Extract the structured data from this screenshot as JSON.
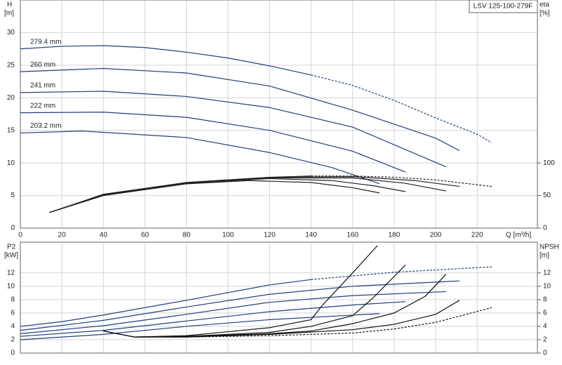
{
  "chart_data": [
    {
      "type": "line",
      "title": "LSV 125-100-279F",
      "y_label": "H",
      "y_unit": "[m]",
      "y2_label": "eta",
      "y2_unit": "[%]",
      "x_label": "Q [m³/h]",
      "xlim": [
        0,
        249
      ],
      "xticks": [
        0,
        20,
        40,
        60,
        80,
        100,
        120,
        140,
        160,
        180,
        200,
        220
      ],
      "xtick_labels": true,
      "ylim": [
        0,
        35
      ],
      "yticks": [
        0,
        5,
        10,
        15,
        20,
        25,
        30
      ],
      "y2lim": [
        0,
        350
      ],
      "y2ticks": [
        0,
        50,
        100
      ],
      "grid": true,
      "series": [
        {
          "name": "279.4 mm",
          "color": "#1f3f7a",
          "dashed": false,
          "x": [
            0,
            20,
            40,
            60,
            80,
            100,
            120,
            140
          ],
          "values": [
            27.5,
            27.9,
            28.0,
            27.7,
            27.0,
            26.1,
            24.9,
            23.5
          ]
        },
        {
          "color": "#1f3f7a",
          "dashed": true,
          "x": [
            140,
            160,
            180,
            200,
            220,
            227
          ],
          "values": [
            23.5,
            21.9,
            19.6,
            16.9,
            14.4,
            13.1
          ]
        },
        {
          "name": "260 mm",
          "color": "#1f3f7a",
          "dashed": false,
          "x": [
            0,
            40,
            80,
            120,
            160,
            200,
            211.5
          ],
          "values": [
            24.0,
            24.5,
            23.8,
            21.8,
            18.1,
            13.8,
            11.9
          ]
        },
        {
          "name": "241 mm",
          "color": "#1f3f7a",
          "dashed": false,
          "x": [
            0,
            40,
            80,
            120,
            160,
            205
          ],
          "values": [
            20.8,
            21.0,
            20.2,
            18.5,
            15.5,
            9.4
          ]
        },
        {
          "name": "222 mm",
          "color": "#1f3f7a",
          "dashed": false,
          "x": [
            0,
            40,
            80,
            120,
            160,
            185.5
          ],
          "values": [
            17.7,
            17.8,
            17.0,
            15.0,
            11.8,
            8.6
          ]
        },
        {
          "name": "203.2 mm",
          "color": "#1f3f7a",
          "dashed": false,
          "x": [
            0,
            30,
            80,
            120,
            150,
            173
          ],
          "values": [
            14.6,
            14.9,
            13.9,
            11.6,
            9.3,
            6.8
          ]
        },
        {
          "color": "#222222",
          "dashed": false,
          "axis": "y2",
          "x": [
            14,
            40,
            80,
            120,
            140
          ],
          "values": [
            24,
            52,
            70,
            78,
            80
          ]
        },
        {
          "color": "#222222",
          "dashed": true,
          "axis": "y2",
          "x": [
            140,
            160,
            180,
            200,
            227
          ],
          "values": [
            80,
            80,
            78,
            74,
            64
          ]
        },
        {
          "color": "#222222",
          "dashed": false,
          "axis": "y2",
          "x": [
            14,
            40,
            80,
            120,
            160,
            190,
            211.5
          ],
          "values": [
            24,
            51,
            70,
            78,
            79,
            73,
            64
          ]
        },
        {
          "color": "#222222",
          "dashed": false,
          "axis": "y2",
          "x": [
            14,
            40,
            80,
            120,
            160,
            185,
            205
          ],
          "values": [
            24,
            51,
            69,
            77,
            77,
            69,
            57
          ]
        },
        {
          "color": "#222222",
          "dashed": false,
          "axis": "y2",
          "x": [
            14,
            40,
            80,
            120,
            150,
            170,
            185.5
          ],
          "values": [
            24,
            50,
            69,
            76,
            73,
            65,
            56
          ]
        },
        {
          "color": "#222222",
          "dashed": false,
          "axis": "y2",
          "x": [
            14,
            40,
            80,
            110,
            140,
            160,
            173
          ],
          "values": [
            24,
            50,
            68,
            73,
            70,
            62,
            54
          ]
        }
      ]
    },
    {
      "type": "line",
      "y_label": "P2",
      "y_unit": "[kW]",
      "y2_label": "NPSH",
      "y2_unit": "[m]",
      "xlim": [
        0,
        249
      ],
      "xticks": [
        0,
        20,
        40,
        60,
        80,
        100,
        120,
        140,
        160,
        180,
        200,
        220
      ],
      "xtick_labels": false,
      "ylim": [
        0,
        16.6
      ],
      "yticks": [
        0,
        2,
        4,
        6,
        8,
        10,
        12
      ],
      "y2lim": [
        0,
        16.6
      ],
      "y2ticks": [
        0,
        2,
        4,
        6,
        8,
        10,
        12
      ],
      "grid": true,
      "series": [
        {
          "color": "#1f3f7a",
          "dashed": false,
          "x": [
            0,
            20,
            40,
            80,
            120,
            140
          ],
          "values": [
            4.0,
            4.7,
            5.7,
            7.9,
            10.2,
            11.0
          ]
        },
        {
          "color": "#1f3f7a",
          "dashed": true,
          "x": [
            140,
            180,
            227
          ],
          "values": [
            11.0,
            12.1,
            12.9
          ]
        },
        {
          "color": "#1f3f7a",
          "dashed": false,
          "x": [
            0,
            40,
            80,
            120,
            160,
            211.5
          ],
          "values": [
            3.4,
            4.9,
            6.9,
            8.8,
            10.0,
            10.8
          ]
        },
        {
          "color": "#1f3f7a",
          "dashed": false,
          "x": [
            0,
            40,
            80,
            120,
            160,
            205
          ],
          "values": [
            2.9,
            4.1,
            5.8,
            7.6,
            8.6,
            9.2
          ]
        },
        {
          "color": "#1f3f7a",
          "dashed": false,
          "x": [
            0,
            40,
            80,
            120,
            160,
            185.5
          ],
          "values": [
            2.5,
            3.4,
            4.8,
            6.2,
            7.2,
            7.7
          ]
        },
        {
          "color": "#1f3f7a",
          "dashed": false,
          "x": [
            0,
            40,
            80,
            120,
            173
          ],
          "values": [
            2.0,
            2.8,
            4.0,
            5.0,
            5.9
          ]
        },
        {
          "color": "#111111",
          "dashed": true,
          "axis": "y2",
          "x": [
            40,
            55,
            80,
            120,
            160,
            180,
            200,
            227
          ],
          "values": [
            3.3,
            2.4,
            2.4,
            2.6,
            3.0,
            3.6,
            4.6,
            6.8
          ]
        },
        {
          "color": "#111111",
          "dashed": false,
          "axis": "y2",
          "x": [
            40,
            55,
            80,
            120,
            160,
            180,
            200,
            211.5
          ],
          "values": [
            3.3,
            2.4,
            2.4,
            2.8,
            3.5,
            4.3,
            5.8,
            7.9
          ]
        },
        {
          "color": "#111111",
          "dashed": false,
          "axis": "y2",
          "x": [
            40,
            55,
            80,
            120,
            140,
            160,
            180,
            195,
            205
          ],
          "values": [
            3.3,
            2.4,
            2.5,
            2.9,
            3.3,
            4.4,
            6.0,
            8.5,
            11.8
          ]
        },
        {
          "color": "#111111",
          "dashed": false,
          "axis": "y2",
          "x": [
            40,
            55,
            80,
            120,
            140,
            160,
            170,
            185.5
          ],
          "values": [
            3.3,
            2.4,
            2.5,
            3.1,
            4.0,
            5.6,
            8.3,
            13.2
          ]
        },
        {
          "color": "#111111",
          "dashed": false,
          "axis": "y2",
          "x": [
            40,
            55,
            80,
            100,
            120,
            140,
            145,
            160,
            172
          ],
          "values": [
            3.3,
            2.4,
            2.6,
            3.2,
            3.8,
            5.0,
            7.0,
            12.0,
            16.1
          ]
        }
      ]
    }
  ]
}
